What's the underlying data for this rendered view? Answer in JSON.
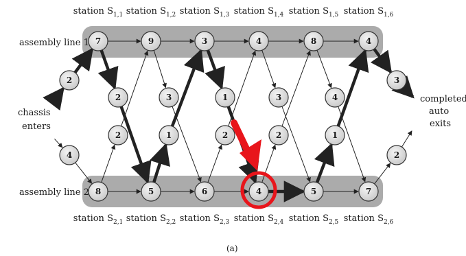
{
  "caption": "(a)",
  "start_label": [
    "chassis",
    "enters"
  ],
  "end_label": [
    "completed",
    "auto",
    "exits"
  ],
  "lines": [
    {
      "label": "assembly line 1",
      "entry_cost": "2",
      "exit_cost": "3",
      "station_labels": [
        {
          "main": "station S",
          "sub": "1,1"
        },
        {
          "main": "station S",
          "sub": "1,2"
        },
        {
          "main": "station S",
          "sub": "1,3"
        },
        {
          "main": "station S",
          "sub": "1,4"
        },
        {
          "main": "station S",
          "sub": "1,5"
        },
        {
          "main": "station S",
          "sub": "1,6"
        }
      ],
      "station_costs": [
        "7",
        "9",
        "3",
        "4",
        "8",
        "4"
      ],
      "transfer_costs": [
        "2",
        "3",
        "1",
        "3",
        "4"
      ]
    },
    {
      "label": "assembly line 2",
      "entry_cost": "4",
      "exit_cost": "2",
      "station_labels": [
        {
          "main": "station S",
          "sub": "2,1"
        },
        {
          "main": "station S",
          "sub": "2,2"
        },
        {
          "main": "station S",
          "sub": "2,3"
        },
        {
          "main": "station S",
          "sub": "2,4"
        },
        {
          "main": "station S",
          "sub": "2,5"
        },
        {
          "main": "station S",
          "sub": "2,6"
        }
      ],
      "station_costs": [
        "8",
        "5",
        "6",
        "4",
        "5",
        "7"
      ],
      "transfer_costs": [
        "2",
        "1",
        "2",
        "2",
        "1"
      ]
    }
  ],
  "highlight": {
    "line": 2,
    "station": 4,
    "color": "#e8151b"
  }
}
